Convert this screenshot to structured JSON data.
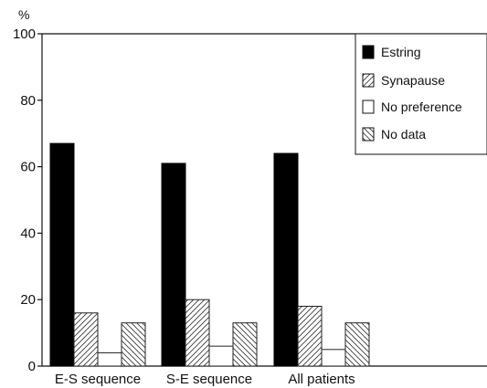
{
  "chart_data": {
    "type": "bar",
    "ylabel": "%",
    "ylim": [
      0,
      100
    ],
    "yticks": [
      "0",
      "20",
      "40",
      "60",
      "80",
      "100"
    ],
    "categories": [
      "E-S sequence",
      "S-E sequence",
      "All patients"
    ],
    "series": [
      {
        "name": "Estring",
        "values": [
          67,
          61,
          64
        ]
      },
      {
        "name": "Synapause",
        "values": [
          16,
          20,
          18
        ]
      },
      {
        "name": "No preference",
        "values": [
          4,
          6,
          5
        ]
      },
      {
        "name": "No data",
        "values": [
          13,
          13,
          13
        ]
      }
    ],
    "legend_position": "top-right",
    "grid": false
  }
}
